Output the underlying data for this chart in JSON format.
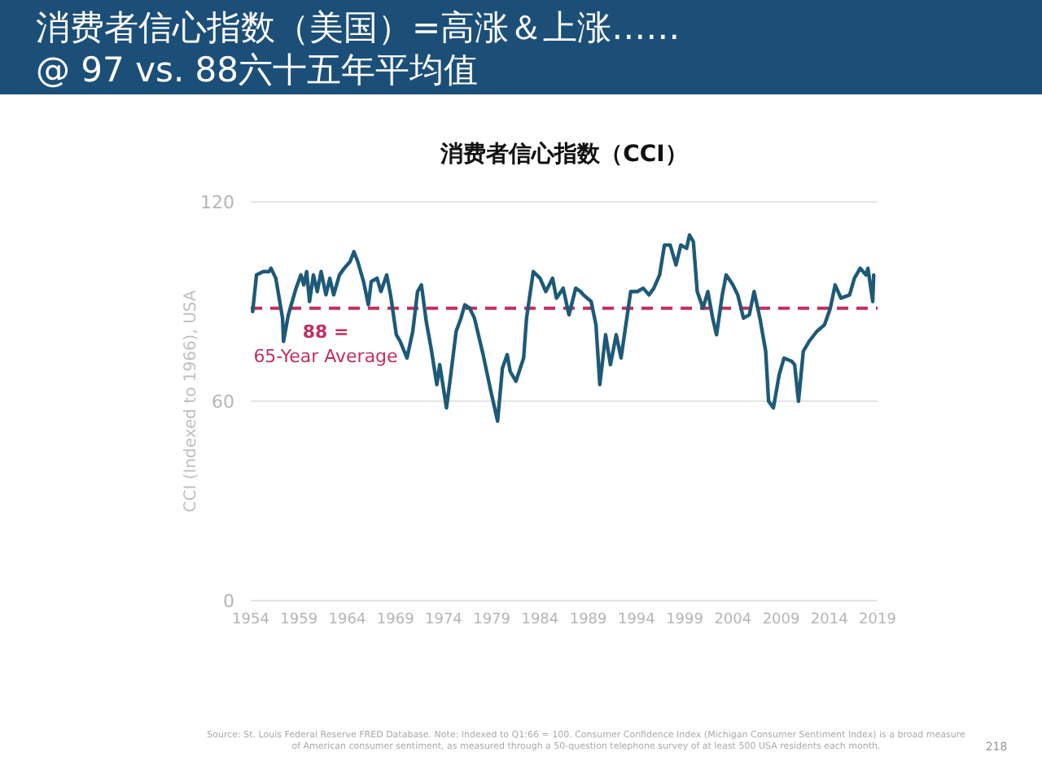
{
  "chart_data": {
    "type": "line",
    "title": "消费者信心指数（美国）=高涨＆上涨……\n@ 97 vs. 88六十五年平均值",
    "subtitle": "消费者信心指数（CCI）",
    "ylabel": "CCI (Indexed to 1966), USA",
    "x": [
      1954.2,
      1954.6,
      1955.3,
      1955.9,
      1956.1,
      1956.6,
      1957.3,
      1957.4,
      1957.9,
      1958.7,
      1959.2,
      1959.5,
      1959.8,
      1960.1,
      1960.5,
      1960.9,
      1961.3,
      1961.8,
      1962.2,
      1962.6,
      1963.2,
      1963.7,
      1964.3,
      1964.7,
      1965.1,
      1965.7,
      1966.2,
      1966.5,
      1967.1,
      1967.5,
      1968.1,
      1968.5,
      1969.1,
      1969.5,
      1970.2,
      1970.8,
      1971.3,
      1971.7,
      1972.2,
      1972.7,
      1973.3,
      1973.6,
      1974.3,
      1974.7,
      1975.3,
      1975.8,
      1976.2,
      1976.7,
      1977.2,
      1978.1,
      1978.9,
      1979.6,
      1980.1,
      1980.6,
      1980.9,
      1981.5,
      1982.3,
      1982.6,
      1983.3,
      1984,
      1984.6,
      1985.3,
      1985.7,
      1986.4,
      1987,
      1987.7,
      1988.2,
      1988.5,
      1989.3,
      1989.8,
      1990.2,
      1990.8,
      1991.3,
      1991.9,
      1992.4,
      1993,
      1993.4,
      1994.1,
      1994.7,
      1995.3,
      1995.8,
      1996.4,
      1996.9,
      1997.5,
      1998.1,
      1998.6,
      1999.2,
      1999.5,
      1999.9,
      2000.3,
      2000.9,
      2001.4,
      2001.9,
      2002.3,
      2002.9,
      2003.3,
      2004,
      2004.5,
      2005.1,
      2005.7,
      2006.2,
      2006.8,
      2007.4,
      2007.7,
      2008.2,
      2008.8,
      2009.3,
      2010.1,
      2010.4,
      2010.8,
      2011.3,
      2011.9,
      2012.7,
      2013.5,
      2014.1,
      2014.6,
      2015.2,
      2016.1,
      2016.6,
      2017.2,
      2017.8,
      2018,
      2018.5,
      2018.6
    ],
    "series": [
      {
        "color": "#1d5a78",
        "values": [
          87,
          98,
          99,
          99,
          100,
          97,
          85,
          78,
          86,
          94,
          98,
          95,
          99,
          90,
          98,
          93,
          99,
          92,
          97,
          92,
          98,
          100,
          102,
          105,
          102,
          96,
          89,
          96,
          97,
          93,
          98,
          92,
          80,
          78,
          73,
          81,
          93,
          95,
          84,
          76,
          65,
          71,
          58,
          67,
          81,
          85,
          89,
          88,
          85,
          74,
          63,
          54,
          70,
          74,
          69,
          66,
          73,
          85,
          99,
          97,
          93,
          97,
          91,
          94,
          86,
          94,
          93,
          92,
          90,
          83,
          65,
          80,
          71,
          80,
          73,
          85,
          93,
          93,
          94,
          92,
          94,
          98,
          107,
          107,
          101,
          107,
          106,
          110,
          108,
          93,
          88,
          93,
          85,
          80,
          92,
          98,
          95,
          92,
          85,
          86,
          93,
          85,
          75,
          60,
          58,
          68,
          73,
          72,
          71,
          60,
          75,
          78,
          81,
          83,
          88,
          95,
          91,
          92,
          97,
          100,
          98,
          100,
          90,
          98
        ]
      }
    ],
    "xlim": [
      1954,
      2019
    ],
    "xticks": [
      1954,
      1959,
      1964,
      1969,
      1974,
      1979,
      1984,
      1989,
      1994,
      1999,
      2004,
      2009,
      2014,
      2019
    ],
    "ylim": [
      0,
      120
    ],
    "yticks": [
      0,
      60,
      120
    ],
    "grid": "y",
    "line_style": "solid",
    "marker": "none",
    "ref_lines": [
      {
        "axis": "y",
        "value": 88,
        "label": "88 =\n65-Year Average",
        "color": "#c2305c",
        "line_style": "dashed"
      }
    ],
    "annotations": [
      "Source: St. Louis Federal Reserve FRED Database. Note: Indexed to Q1:66 = 100. Consumer Confidence Index (Michigan Consumer Sentiment Index) is a broad measure of American consumer sentiment, as measured through a 50-question telephone survey of at least 500 USA residents each month.",
      "218"
    ]
  }
}
